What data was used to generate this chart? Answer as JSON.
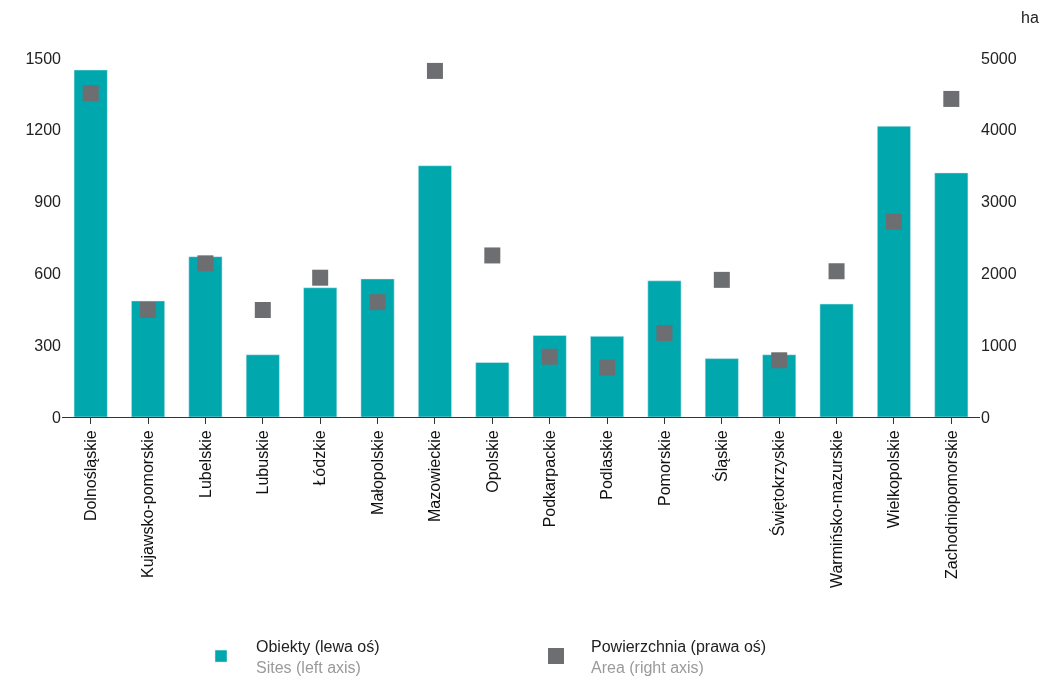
{
  "chart_data": {
    "type": "bar",
    "categories": [
      "Dolnośląskie",
      "Kujawsko-pomorskie",
      "Lubelskie",
      "Lubuskie",
      "Łódzkie",
      "Małopolskie",
      "Mazowieckie",
      "Opolskie",
      "Podkarpackie",
      "Podlaskie",
      "Pomorskie",
      "Śląskie",
      "Świętokrzyskie",
      "Warmińsko-mazurskie",
      "Wielkopolskie",
      "Zachodniopomorskie"
    ],
    "series": [
      {
        "name": "Obiekty (lewa oś)\nSites (left axis)",
        "color": "#00a8ad",
        "values": [
          1450,
          485,
          670,
          260,
          540,
          577,
          1050,
          228,
          341,
          337,
          569,
          244,
          260,
          472,
          1215,
          1020
        ]
      },
      {
        "name": "Powierzchnia (prawa oś)\nArea (right axis)",
        "type": "scatter",
        "axis": "y2",
        "color": "#6d6e71",
        "marker": "square",
        "values": [
          4510,
          1490,
          2140,
          1490,
          1940,
          1600,
          4820,
          2250,
          840,
          690,
          1170,
          1910,
          790,
          2030,
          2720,
          4430
        ]
      }
    ],
    "y2label": "ha",
    "ylim": [
      0,
      1500
    ],
    "yticks": [
      0,
      300,
      600,
      900,
      1200,
      1500
    ],
    "y2lim": [
      0,
      5000
    ],
    "y2ticks": [
      0,
      1000,
      2000,
      3000,
      4000,
      5000
    ],
    "legend": "bottom"
  }
}
